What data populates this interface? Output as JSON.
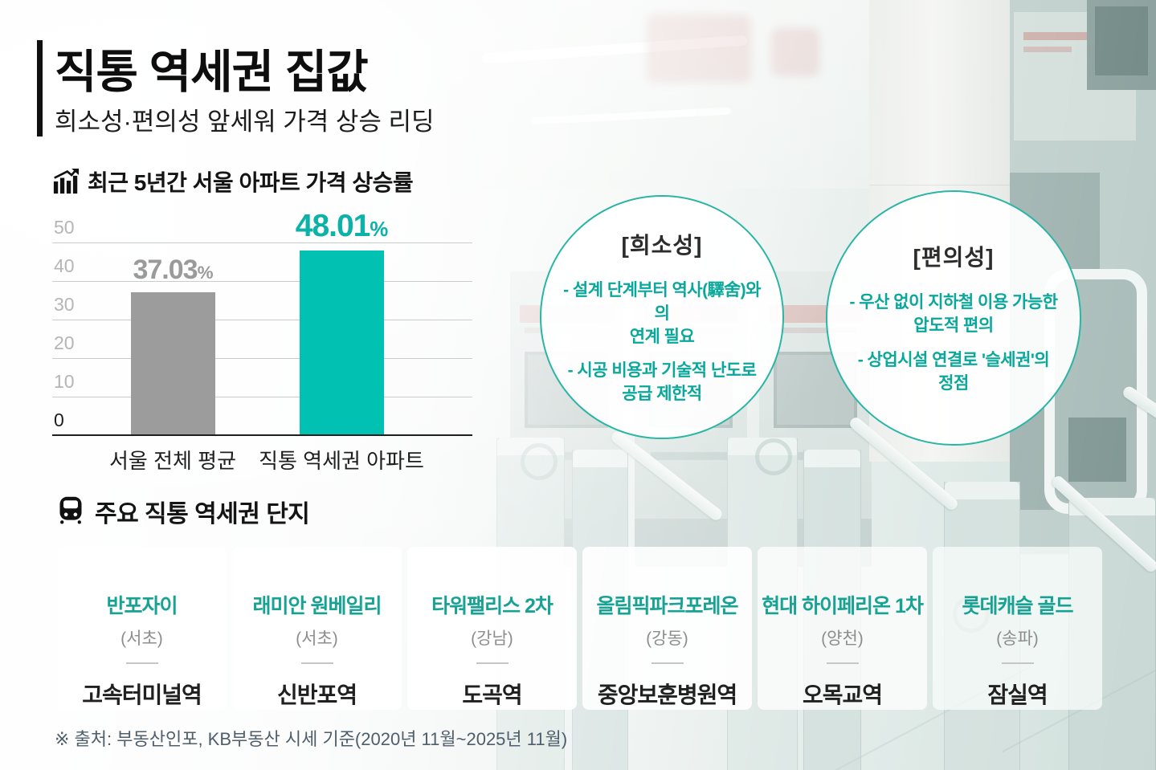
{
  "colors": {
    "accent_teal": "#00c1b2",
    "bar_gray": "#9c9c9c",
    "card_name_teal": "#17a294",
    "bubble_text_teal": "#0aa79b",
    "title_black": "#101010",
    "source_gray": "#4f5e6b"
  },
  "header": {
    "title": "직통 역세권 집값",
    "subtitle": "희소성·편의성 앞세워 가격 상승 리딩"
  },
  "icons": {
    "chart_section": "chart-rising-icon",
    "complex_section": "train-front-icon"
  },
  "chart_data": {
    "type": "bar",
    "title": "최근 5년간 서울 아파트 가격 상승률",
    "categories": [
      "서울 전체 평균",
      "직통 역세권 아파트"
    ],
    "values": [
      37.03,
      48.01
    ],
    "value_display": [
      "37.03",
      "48.01"
    ],
    "unit": "%",
    "ylim": [
      0,
      50
    ],
    "yticks": [
      0,
      10,
      20,
      30,
      40,
      50
    ],
    "grid": true,
    "legend": "none",
    "bar_colors": [
      "#9c9c9c",
      "#00c1b2"
    ],
    "value_colors": [
      "#9a9a9a",
      "#0cb2a8"
    ]
  },
  "bubbles": [
    {
      "title": "[희소성]",
      "points": [
        {
          "lines": [
            "- 설계 단계부터 역사(驛舍)와의",
            "연계 필요"
          ]
        },
        {
          "lines": [
            "- 시공 비용과 기술적 난도로",
            "공급 제한적"
          ]
        }
      ]
    },
    {
      "title": "[편의성]",
      "points": [
        {
          "lines": [
            "- 우산 없이 지하철 이용 가능한",
            "압도적 편의"
          ]
        },
        {
          "lines": [
            "- 상업시설 연결로 '슬세권'의 정점"
          ]
        }
      ]
    }
  ],
  "complexes": {
    "heading": "주요 직통 역세권 단지",
    "cards": [
      {
        "name": "반포자이",
        "region": "(서초)",
        "station": "고속터미널역"
      },
      {
        "name": "래미안 원베일리",
        "region": "(서초)",
        "station": "신반포역"
      },
      {
        "name": "타워팰리스 2차",
        "region": "(강남)",
        "station": "도곡역"
      },
      {
        "name": "올림픽파크포레온",
        "region": "(강동)",
        "station": "중앙보훈병원역"
      },
      {
        "name": "현대 하이페리온 1차",
        "region": "(양천)",
        "station": "오목교역"
      },
      {
        "name": "롯데캐슬 골드",
        "region": "(송파)",
        "station": "잠실역"
      }
    ]
  },
  "footer": {
    "source": "※ 출처: 부동산인포, KB부동산 시세 기준(2020년 11월~2025년 11월)"
  }
}
